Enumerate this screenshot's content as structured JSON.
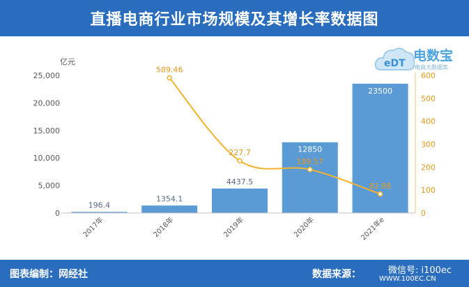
{
  "title": "直播电商行业市场规模及其增长率数据图",
  "footer": {
    "editor": "图表编制：网经社",
    "source": "数据来源：",
    "wechat": "微信号: i100ec",
    "site": "WWW.100EC.CN"
  },
  "logo": {
    "text": "电数宝",
    "sub": "电商大数据库"
  },
  "colors": {
    "header": "#2a6dbf",
    "bar": "#5b9bd5",
    "line": "#f5b22e"
  },
  "chart_data": {
    "type": "bar",
    "categories": [
      "2017年",
      "2018年",
      "2019年",
      "2020年",
      "2021年e"
    ],
    "series": [
      {
        "type": "bar",
        "axis": "left",
        "values": [
          196.4,
          1354.1,
          4437.5,
          12850,
          23500
        ],
        "labels": [
          "196.4",
          "1354.1",
          "4437.5",
          "12850",
          "23500"
        ]
      },
      {
        "type": "line",
        "axis": "right",
        "values": [
          null,
          589.46,
          227.7,
          189.57,
          82.88
        ],
        "labels": [
          "",
          "589.46",
          "227.7",
          "189.57",
          "82.88"
        ]
      }
    ],
    "y_left": {
      "unit": "亿元",
      "min": 0,
      "max": 25000,
      "ticks": [
        "0",
        "5,000",
        "10,000",
        "15,000",
        "20,000",
        "25,000"
      ]
    },
    "y_right": {
      "min": 0,
      "max": 600,
      "ticks": [
        "0",
        "100",
        "200",
        "300",
        "400",
        "500",
        "600"
      ]
    },
    "grid": false
  }
}
